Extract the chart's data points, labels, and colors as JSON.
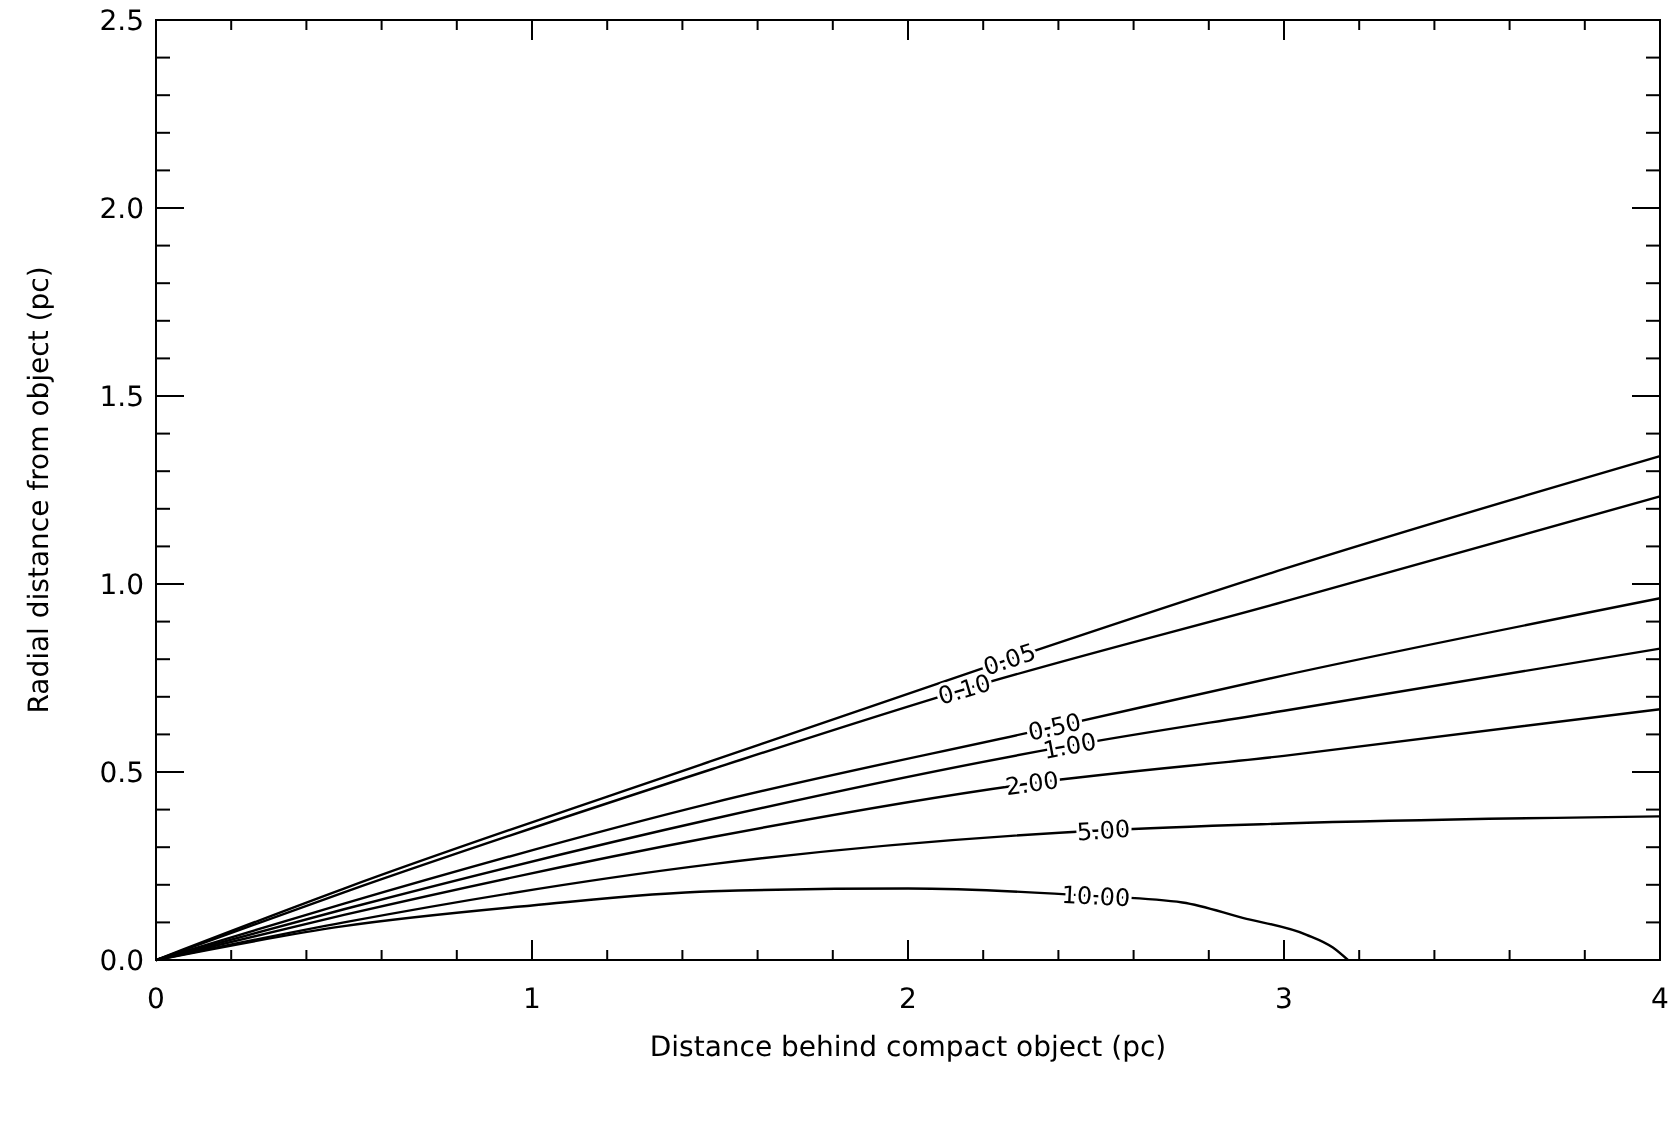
{
  "chart_data": {
    "type": "line",
    "xlabel": "Distance behind compact object (pc)",
    "ylabel": "Radial distance from object (pc)",
    "xlim": [
      0,
      4
    ],
    "xticks": [
      0,
      1,
      2,
      3,
      4
    ],
    "ylim": [
      0,
      2.5
    ],
    "yticks": [
      {
        "value": 0,
        "label": "0.0"
      },
      {
        "value": 0.5,
        "label": "0.5"
      },
      {
        "value": 1,
        "label": "1.0"
      },
      {
        "value": 1.5,
        "label": "1.5"
      },
      {
        "value": 2,
        "label": "2.0"
      },
      {
        "value": 2.5,
        "label": "2.5"
      }
    ],
    "grid": false,
    "marker": "none",
    "line_style": "solid",
    "series": [
      {
        "name": "0.05",
        "color": "#000000",
        "x": [
          0,
          0.5,
          1.48,
          2.27,
          3,
          4
        ],
        "values": [
          0,
          0.19,
          0.53,
          0.8,
          1.04,
          1.34
        ]
      },
      {
        "name": "0.10",
        "color": "#000000",
        "x": [
          0,
          0.5,
          1.48,
          2.15,
          3,
          4
        ],
        "values": [
          0,
          0.18,
          0.508,
          0.72,
          0.953,
          1.233
        ]
      },
      {
        "name": "0.50",
        "color": "#000000",
        "x": [
          0,
          0.5,
          1.48,
          2.39,
          3,
          4
        ],
        "values": [
          0,
          0.15,
          0.418,
          0.62,
          0.757,
          0.962
        ]
      },
      {
        "name": "1.00",
        "color": "#000000",
        "x": [
          0,
          0.5,
          1.48,
          2.43,
          3,
          4
        ],
        "values": [
          0,
          0.135,
          0.375,
          0.57,
          0.663,
          0.828
        ]
      },
      {
        "name": "2.00",
        "color": "#000000",
        "x": [
          0,
          0.5,
          1.48,
          2.33,
          3,
          4
        ],
        "values": [
          0,
          0.12,
          0.327,
          0.47,
          0.543,
          0.667
        ]
      },
      {
        "name": "5.00",
        "color": "#000000",
        "x": [
          0,
          0.5,
          1.48,
          2.52,
          3,
          4
        ],
        "values": [
          0,
          0.1,
          0.255,
          0.345,
          0.363,
          0.382
        ]
      },
      {
        "name": "10.00",
        "color": "#000000",
        "x": [
          0,
          0.5,
          1,
          1.48,
          2,
          2.5,
          2.73,
          2.89,
          3.06,
          3.13,
          3.17
        ],
        "values": [
          0,
          0.09,
          0.145,
          0.183,
          0.19,
          0.17,
          0.153,
          0.112,
          0.067,
          0.033,
          0
        ]
      }
    ]
  }
}
